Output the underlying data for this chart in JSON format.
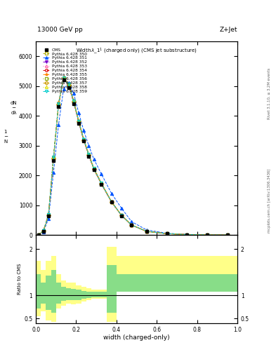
{
  "title": "Widthλ_1¹ (charged only) (CMS jet substructure)",
  "header_left": "13000 GeV pp",
  "header_right": "Z+Jet",
  "xlabel": "width (charged-only)",
  "ylabel_main": "1\n—\nN\n\nd N\n—\ndλ",
  "ylabel_ratio": "Ratio to CMS",
  "right_label_top": "Rivet 3.1.10, ≥ 3.2M events",
  "right_label_bottom": "mcplots.cern.ch [arXiv:1306.3436]",
  "xlim": [
    0,
    1
  ],
  "ylim_main": [
    0,
    6500
  ],
  "ylim_ratio": [
    0.4,
    2.3
  ],
  "ratio_yticks": [
    0.5,
    1.0,
    2.0
  ],
  "series": [
    {
      "label": "Pythia 6.428 350",
      "color": "#aaaa00",
      "linestyle": "--",
      "marker": "s",
      "fillstyle": "none",
      "mew": 0.8
    },
    {
      "label": "Pythia 6.428 351",
      "color": "#0055ff",
      "linestyle": "--",
      "marker": "^",
      "fillstyle": "full",
      "mew": 0.8
    },
    {
      "label": "Pythia 6.428 352",
      "color": "#7700cc",
      "linestyle": "-.",
      "marker": "v",
      "fillstyle": "full",
      "mew": 0.8
    },
    {
      "label": "Pythia 6.428 353",
      "color": "#ff66aa",
      "linestyle": ":",
      "marker": "^",
      "fillstyle": "none",
      "mew": 0.8
    },
    {
      "label": "Pythia 6.428 354",
      "color": "#dd0000",
      "linestyle": "--",
      "marker": "o",
      "fillstyle": "none",
      "mew": 0.8
    },
    {
      "label": "Pythia 6.428 355",
      "color": "#ff8800",
      "linestyle": "--",
      "marker": "*",
      "fillstyle": "full",
      "mew": 0.8
    },
    {
      "label": "Pythia 6.428 356",
      "color": "#88aa00",
      "linestyle": ":",
      "marker": "s",
      "fillstyle": "none",
      "mew": 0.8
    },
    {
      "label": "Pythia 6.428 357",
      "color": "#cc9900",
      "linestyle": "-.",
      "marker": "D",
      "fillstyle": "none",
      "mew": 0.8
    },
    {
      "label": "Pythia 6.428 358",
      "color": "#dddd00",
      "linestyle": ":",
      "marker": "^",
      "fillstyle": "none",
      "mew": 0.8
    },
    {
      "label": "Pythia 6.428 359",
      "color": "#00cccc",
      "linestyle": "--",
      "marker": "v",
      "fillstyle": "none",
      "mew": 0.8
    }
  ],
  "x_bins": [
    0.0,
    0.025,
    0.05,
    0.075,
    0.1,
    0.125,
    0.15,
    0.175,
    0.2,
    0.225,
    0.25,
    0.275,
    0.3,
    0.35,
    0.4,
    0.45,
    0.5,
    0.6,
    0.7,
    0.8,
    0.9,
    1.0
  ],
  "cms_y": [
    10,
    130,
    650,
    2500,
    4300,
    5200,
    4950,
    4400,
    3750,
    3150,
    2650,
    2200,
    1700,
    1100,
    650,
    330,
    120,
    45,
    15,
    5,
    2
  ],
  "pythia_y_350": [
    10,
    140,
    680,
    2600,
    4400,
    5280,
    5050,
    4500,
    3820,
    3200,
    2700,
    2230,
    1730,
    1120,
    660,
    335,
    122,
    46,
    16,
    5,
    2
  ],
  "pythia_y_351": [
    10,
    110,
    550,
    2100,
    3700,
    4900,
    5100,
    4750,
    4100,
    3500,
    3000,
    2550,
    2050,
    1400,
    900,
    450,
    170,
    60,
    20,
    7,
    2
  ],
  "pythia_y_352": [
    10,
    135,
    660,
    2550,
    4350,
    5240,
    5000,
    4450,
    3780,
    3170,
    2670,
    2210,
    1710,
    1110,
    655,
    332,
    121,
    46,
    16,
    5,
    2
  ],
  "pythia_y_353": [
    10,
    145,
    690,
    2620,
    4420,
    5290,
    5060,
    4510,
    3830,
    3210,
    2710,
    2240,
    1740,
    1125,
    662,
    336,
    123,
    47,
    16,
    5,
    2
  ],
  "pythia_y_354": [
    10,
    138,
    670,
    2570,
    4370,
    5260,
    5030,
    4470,
    3800,
    3185,
    2685,
    2220,
    1720,
    1115,
    658,
    333,
    122,
    46,
    16,
    5,
    2
  ],
  "pythia_y_355": [
    10,
    148,
    700,
    2640,
    4440,
    5300,
    5070,
    4520,
    3840,
    3220,
    2720,
    2250,
    1750,
    1130,
    665,
    337,
    124,
    47,
    16,
    5,
    2
  ],
  "pythia_y_356": [
    10,
    137,
    665,
    2560,
    4360,
    5255,
    5025,
    4465,
    3795,
    3180,
    2680,
    2215,
    1715,
    1112,
    657,
    333,
    121,
    46,
    16,
    5,
    2
  ],
  "pythia_y_357": [
    10,
    139,
    672,
    2575,
    4375,
    5265,
    5035,
    4475,
    3805,
    3190,
    2690,
    2222,
    1722,
    1117,
    659,
    334,
    122,
    46,
    16,
    5,
    2
  ],
  "pythia_y_358": [
    10,
    142,
    678,
    2590,
    4390,
    5275,
    5045,
    4485,
    3815,
    3198,
    2698,
    2228,
    1728,
    1120,
    661,
    335,
    122,
    46,
    16,
    5,
    2
  ],
  "pythia_y_359": [
    10,
    144,
    685,
    2610,
    4410,
    5285,
    5055,
    4495,
    3825,
    3205,
    2705,
    2235,
    1735,
    1122,
    662,
    336,
    123,
    46,
    16,
    5,
    2
  ],
  "ratio_yellow_lo": [
    0.55,
    0.65,
    0.45,
    0.42,
    0.72,
    0.78,
    0.82,
    0.8,
    0.82,
    0.87,
    0.9,
    0.92,
    0.92,
    0.42,
    1.25,
    1.25,
    1.25,
    1.25,
    1.25,
    1.25,
    1.25
  ],
  "ratio_yellow_hi": [
    1.75,
    1.55,
    1.75,
    1.85,
    1.45,
    1.32,
    1.28,
    1.28,
    1.22,
    1.18,
    1.15,
    1.13,
    1.13,
    2.05,
    1.85,
    1.85,
    1.85,
    1.85,
    1.85,
    1.85,
    1.85
  ],
  "ratio_green_lo": [
    0.72,
    0.82,
    0.68,
    0.62,
    0.82,
    0.88,
    0.9,
    0.89,
    0.9,
    0.92,
    0.94,
    0.95,
    0.95,
    0.62,
    1.08,
    1.08,
    1.08,
    1.08,
    1.08,
    1.08,
    1.08
  ],
  "ratio_green_hi": [
    1.45,
    1.28,
    1.42,
    1.55,
    1.28,
    1.18,
    1.15,
    1.14,
    1.12,
    1.1,
    1.08,
    1.08,
    1.08,
    1.65,
    1.45,
    1.45,
    1.45,
    1.45,
    1.45,
    1.45,
    1.45
  ]
}
